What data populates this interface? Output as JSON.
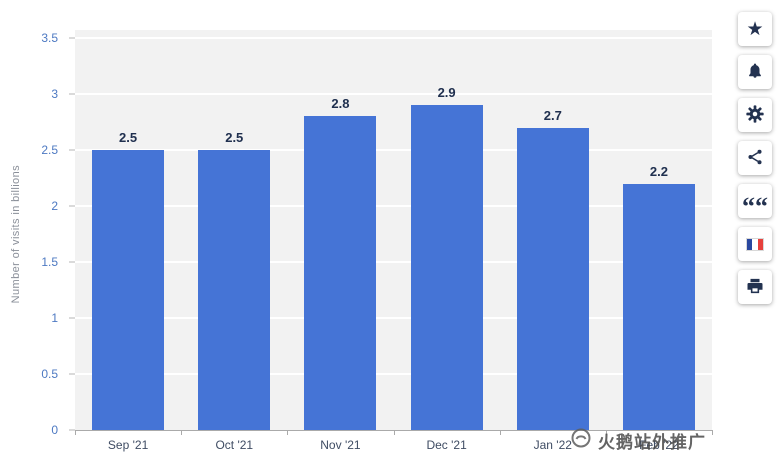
{
  "chart_data": {
    "type": "bar",
    "categories": [
      "Sep '21",
      "Oct '21",
      "Nov '21",
      "Dec '21",
      "Jan '22",
      "Feb '22"
    ],
    "values": [
      2.5,
      2.5,
      2.8,
      2.9,
      2.7,
      2.2
    ],
    "value_labels": [
      "2.5",
      "2.5",
      "2.8",
      "2.9",
      "2.7",
      "2.2"
    ],
    "title": "",
    "xlabel": "",
    "ylabel": "Number of visits in billions",
    "ylim": [
      0,
      3.5
    ],
    "yticks": [
      0,
      0.5,
      1,
      1.5,
      2,
      2.5,
      3,
      3.5
    ],
    "ytick_labels": [
      "0",
      "0.5",
      "1",
      "1.5",
      "2",
      "2.5",
      "3",
      "3.5"
    ],
    "grid": true,
    "legend": false,
    "bar_color": "#4574d6",
    "plot_bg": "#f2f2f2",
    "gridline_color": "#ffffff",
    "value_label_color": "#20304f",
    "ytick_color": "#4d79c2",
    "xtick_color": "#3f4c63"
  },
  "side_toolbar": {
    "buttons": [
      {
        "label": "favorite",
        "icon": "star-icon"
      },
      {
        "label": "notifications",
        "icon": "bell-icon"
      },
      {
        "label": "settings",
        "icon": "gear-icon"
      },
      {
        "label": "share",
        "icon": "share-icon"
      },
      {
        "label": "citation",
        "icon": "quote-icon"
      },
      {
        "label": "language-french",
        "icon": "french-flag-icon"
      },
      {
        "label": "print",
        "icon": "printer-icon"
      }
    ],
    "star_glyph": "★",
    "quote_glyph": "““"
  },
  "watermark": {
    "text": "火鹅站外推广"
  }
}
